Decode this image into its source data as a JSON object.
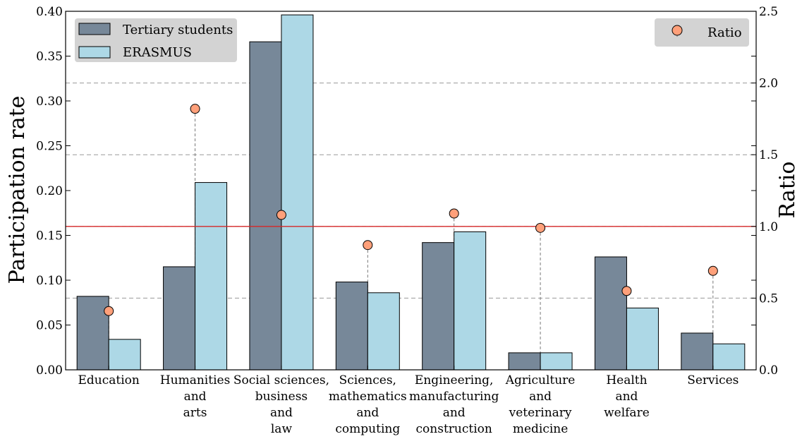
{
  "chart_data": {
    "type": "bar",
    "categories": [
      [
        "Education"
      ],
      [
        "Humanities",
        "and",
        "arts"
      ],
      [
        "Social sciences,",
        "business",
        "and",
        "law"
      ],
      [
        "Sciences,",
        "mathematics",
        "and",
        "computing"
      ],
      [
        "Engineering,",
        "manufacturing",
        "and",
        "construction"
      ],
      [
        "Agriculture",
        "and",
        "veterinary",
        "medicine"
      ],
      [
        "Health",
        "and",
        "welfare"
      ],
      [
        "Services"
      ]
    ],
    "series": [
      {
        "name": "Tertiary students",
        "values": [
          0.082,
          0.115,
          0.366,
          0.098,
          0.142,
          0.019,
          0.126,
          0.041
        ],
        "color": "#778899"
      },
      {
        "name": "ERASMUS",
        "values": [
          0.034,
          0.209,
          0.396,
          0.086,
          0.154,
          0.019,
          0.069,
          0.029
        ],
        "color": "#add8e6"
      }
    ],
    "ratio": {
      "name": "Ratio",
      "values": [
        0.41,
        1.82,
        1.08,
        0.87,
        1.09,
        0.99,
        0.55,
        0.69
      ],
      "color": "#ffa07a"
    },
    "reference_line": {
      "value": 1.0,
      "axis": "right",
      "color": "#d62728"
    },
    "ylabel": "Participation rate",
    "ylabel_right": "Ratio",
    "ylim": [
      0,
      0.4
    ],
    "ylim_right": [
      0,
      2.5
    ],
    "yticks": [
      "0.00",
      "0.05",
      "0.10",
      "0.15",
      "0.20",
      "0.25",
      "0.30",
      "0.35",
      "0.40"
    ],
    "yticks_right": [
      "0.0",
      "0.5",
      "1.0",
      "1.5",
      "2.0",
      "2.5"
    ],
    "grid": "horizontal dashed at right-axis ticks",
    "legend_left": "top-left",
    "legend_right": "top-right"
  }
}
